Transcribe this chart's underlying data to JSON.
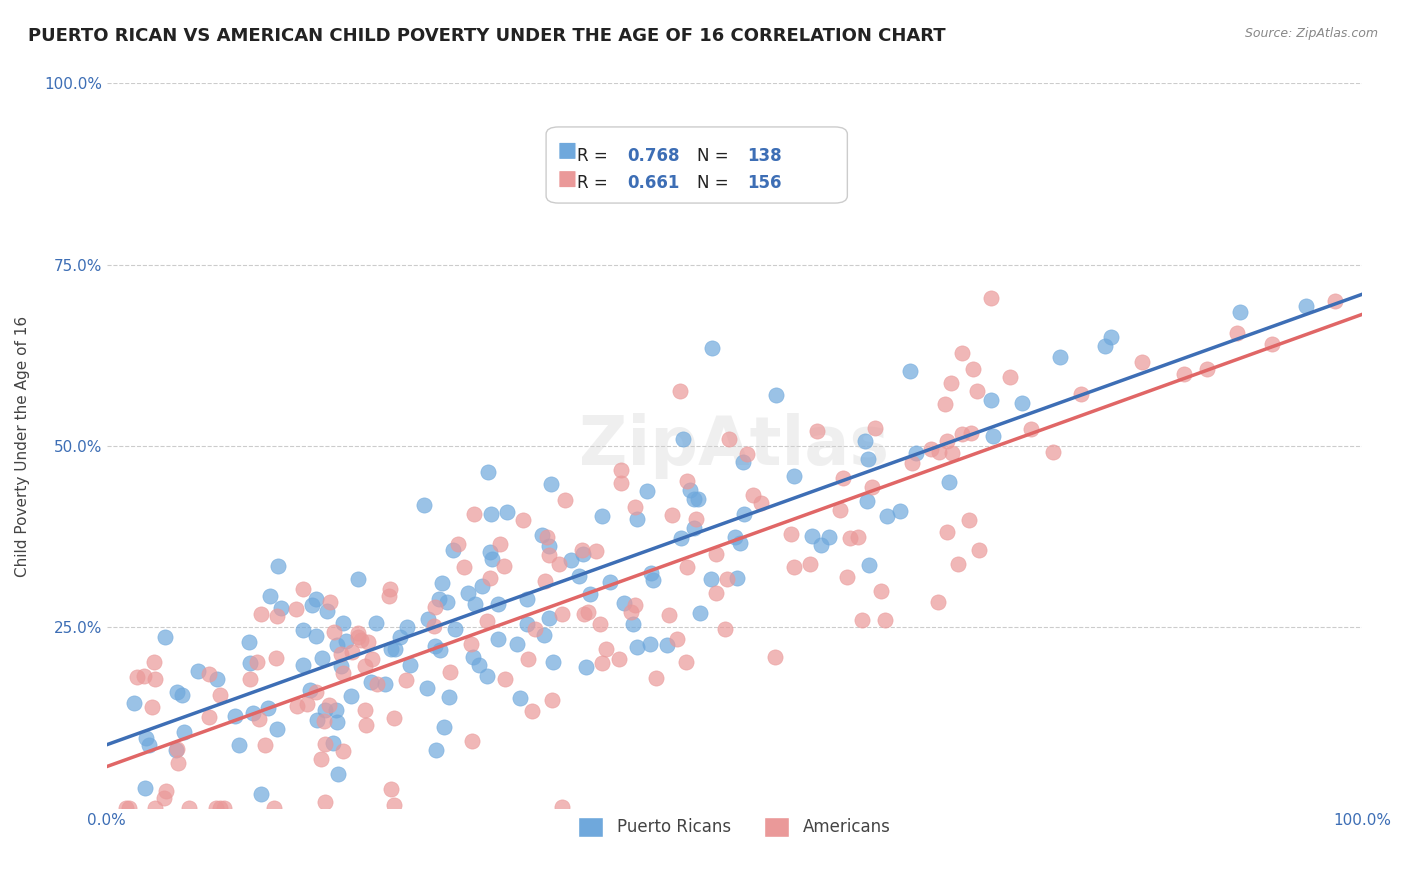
{
  "title": "PUERTO RICAN VS AMERICAN CHILD POVERTY UNDER THE AGE OF 16 CORRELATION CHART",
  "source": "Source: ZipAtlas.com",
  "ylabel": "Child Poverty Under the Age of 16",
  "xlabel": "",
  "xlim": [
    0.0,
    1.0
  ],
  "ylim": [
    0.0,
    1.0
  ],
  "xtick_labels": [
    "0.0%",
    "100.0%"
  ],
  "ytick_labels": [
    "25.0%",
    "50.0%",
    "75.0%",
    "100.0%"
  ],
  "blue_R": 0.768,
  "blue_N": 138,
  "pink_R": 0.661,
  "pink_N": 156,
  "blue_color": "#6fa8dc",
  "pink_color": "#ea9999",
  "blue_line_color": "#3d6eb5",
  "pink_line_color": "#e06666",
  "legend_label_blue": "Puerto Ricans",
  "legend_label_pink": "Americans",
  "title_fontsize": 13,
  "axis_label_fontsize": 11,
  "tick_label_fontsize": 11,
  "watermark_text": "ZipAtlas",
  "background_color": "#ffffff",
  "grid_color": "#cccccc",
  "blue_seed": 42,
  "pink_seed": 7,
  "blue_intercept": 0.1,
  "blue_slope": 0.6,
  "pink_intercept": 0.05,
  "pink_slope": 0.65
}
